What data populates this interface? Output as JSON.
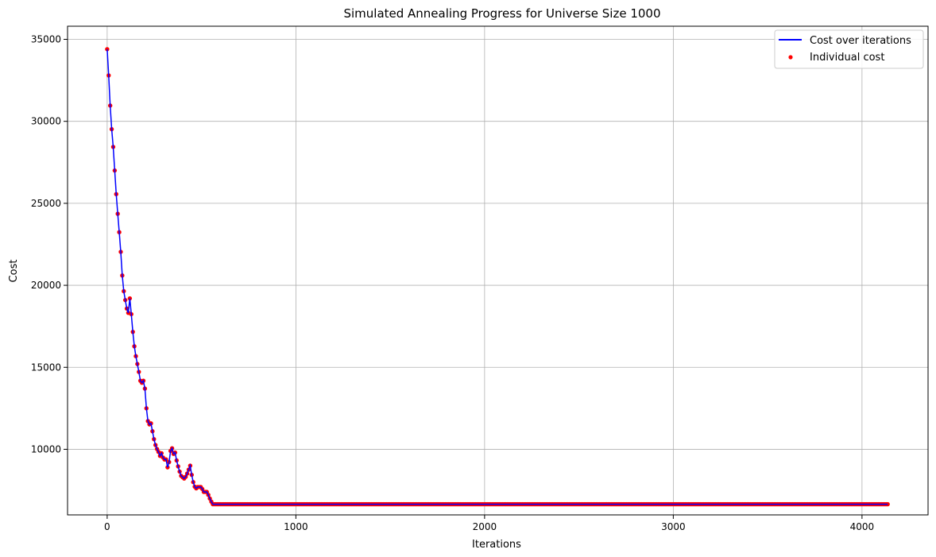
{
  "chart_data": {
    "type": "line",
    "title": "Simulated Annealing Progress for Universe Size 1000",
    "xlabel": "Iterations",
    "ylabel": "Cost",
    "xlim": [
      -210,
      4350
    ],
    "ylim": [
      6000,
      35800
    ],
    "xticks": [
      0,
      1000,
      2000,
      3000,
      4000
    ],
    "yticks": [
      10000,
      15000,
      20000,
      25000,
      30000,
      35000
    ],
    "grid": true,
    "legend_position": "top-right",
    "colors": {
      "line": "#0000ff",
      "points": "#ff0000",
      "grid": "#b0b0b0"
    },
    "series": [
      {
        "name": "Cost over iterations",
        "kind": "line",
        "keypoints": [
          [
            0,
            34400
          ],
          [
            10,
            32400
          ],
          [
            20,
            30000
          ],
          [
            30,
            28800
          ],
          [
            40,
            27000
          ],
          [
            50,
            25200
          ],
          [
            60,
            23800
          ],
          [
            70,
            22400
          ],
          [
            80,
            20600
          ],
          [
            90,
            19400
          ],
          [
            100,
            18900
          ],
          [
            110,
            18100
          ],
          [
            120,
            19200
          ],
          [
            130,
            18000
          ],
          [
            140,
            16600
          ],
          [
            150,
            15800
          ],
          [
            160,
            15200
          ],
          [
            170,
            14600
          ],
          [
            180,
            13900
          ],
          [
            190,
            14300
          ],
          [
            200,
            13700
          ],
          [
            210,
            12200
          ],
          [
            220,
            11400
          ],
          [
            230,
            11700
          ],
          [
            240,
            11100
          ],
          [
            250,
            10500
          ],
          [
            260,
            10100
          ],
          [
            270,
            9900
          ],
          [
            280,
            9600
          ],
          [
            290,
            9800
          ],
          [
            300,
            9300
          ],
          [
            310,
            9500
          ],
          [
            320,
            8900
          ],
          [
            330,
            9300
          ],
          [
            340,
            10300
          ],
          [
            350,
            9700
          ],
          [
            360,
            9800
          ],
          [
            370,
            9200
          ],
          [
            380,
            8800
          ],
          [
            390,
            8400
          ],
          [
            400,
            8300
          ],
          [
            410,
            8200
          ],
          [
            420,
            8400
          ],
          [
            430,
            8700
          ],
          [
            440,
            9000
          ],
          [
            450,
            8300
          ],
          [
            460,
            7800
          ],
          [
            470,
            7600
          ],
          [
            480,
            7700
          ],
          [
            500,
            7700
          ],
          [
            510,
            7400
          ],
          [
            530,
            7400
          ],
          [
            540,
            7100
          ],
          [
            550,
            6850
          ],
          [
            560,
            6650
          ],
          [
            4140,
            6650
          ]
        ]
      },
      {
        "name": "Individual cost",
        "kind": "scatter",
        "same_as": "Cost over iterations"
      }
    ]
  }
}
